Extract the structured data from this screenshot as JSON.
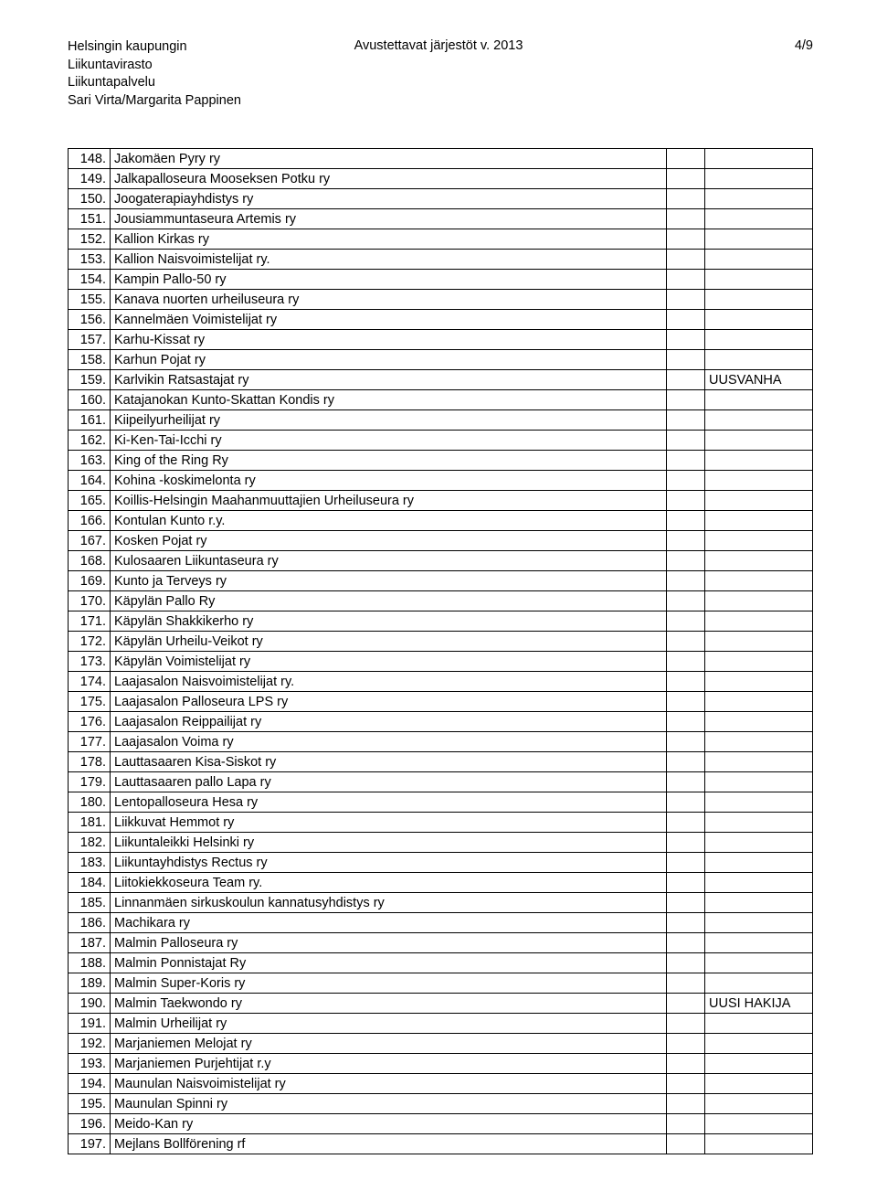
{
  "header": {
    "org_line1": "Helsingin kaupungin",
    "org_line2": "Liikuntavirasto",
    "org_line3": "Liikuntapalvelu",
    "org_line4": "Sari Virta/Margarita Pappinen",
    "title": "Avustettavat järjestöt v. 2013",
    "page_indicator": "4/9"
  },
  "notes": {
    "uusvanha": "UUSVANHA",
    "uusi_hakija": "UUSI HAKIJA"
  },
  "rows": [
    {
      "n": "148.",
      "name": "Jakomäen Pyry ry"
    },
    {
      "n": "149.",
      "name": "Jalkapalloseura Mooseksen Potku ry"
    },
    {
      "n": "150.",
      "name": "Joogaterapiayhdistys ry"
    },
    {
      "n": "151.",
      "name": "Jousiammuntaseura Artemis ry"
    },
    {
      "n": "152.",
      "name": "Kallion Kirkas ry"
    },
    {
      "n": "153.",
      "name": "Kallion Naisvoimistelijat ry."
    },
    {
      "n": "154.",
      "name": "Kampin Pallo-50 ry"
    },
    {
      "n": "155.",
      "name": "Kanava nuorten urheiluseura ry"
    },
    {
      "n": "156.",
      "name": "Kannelmäen Voimistelijat ry"
    },
    {
      "n": "157.",
      "name": "Karhu-Kissat ry"
    },
    {
      "n": "158.",
      "name": "Karhun Pojat ry"
    },
    {
      "n": "159.",
      "name": "Karlvikin Ratsastajat ry",
      "note_key": "uusvanha"
    },
    {
      "n": "160.",
      "name": "Katajanokan Kunto-Skattan Kondis ry"
    },
    {
      "n": "161.",
      "name": "Kiipeilyurheilijat ry"
    },
    {
      "n": "162.",
      "name": "Ki-Ken-Tai-Icchi ry"
    },
    {
      "n": "163.",
      "name": "King of the Ring Ry"
    },
    {
      "n": "164.",
      "name": "Kohina -koskimelonta ry"
    },
    {
      "n": "165.",
      "name": "Koillis-Helsingin Maahanmuuttajien Urheiluseura ry"
    },
    {
      "n": "166.",
      "name": "Kontulan Kunto r.y."
    },
    {
      "n": "167.",
      "name": "Kosken Pojat ry"
    },
    {
      "n": "168.",
      "name": "Kulosaaren Liikuntaseura ry"
    },
    {
      "n": "169.",
      "name": "Kunto ja Terveys ry"
    },
    {
      "n": "170.",
      "name": "Käpylän Pallo Ry"
    },
    {
      "n": "171.",
      "name": "Käpylän Shakkikerho ry"
    },
    {
      "n": "172.",
      "name": "Käpylän Urheilu-Veikot ry"
    },
    {
      "n": "173.",
      "name": "Käpylän Voimistelijat ry"
    },
    {
      "n": "174.",
      "name": "Laajasalon Naisvoimistelijat ry."
    },
    {
      "n": "175.",
      "name": "Laajasalon Palloseura LPS ry"
    },
    {
      "n": "176.",
      "name": "Laajasalon Reippailijat ry"
    },
    {
      "n": "177.",
      "name": "Laajasalon Voima ry"
    },
    {
      "n": "178.",
      "name": "Lauttasaaren Kisa-Siskot ry"
    },
    {
      "n": "179.",
      "name": "Lauttasaaren pallo Lapa ry"
    },
    {
      "n": "180.",
      "name": "Lentopalloseura Hesa ry"
    },
    {
      "n": "181.",
      "name": "Liikkuvat Hemmot ry"
    },
    {
      "n": "182.",
      "name": "Liikuntaleikki Helsinki ry"
    },
    {
      "n": "183.",
      "name": "Liikuntayhdistys Rectus ry"
    },
    {
      "n": "184.",
      "name": "Liitokiekkoseura Team ry."
    },
    {
      "n": "185.",
      "name": "Linnanmäen sirkuskoulun kannatusyhdistys ry"
    },
    {
      "n": "186.",
      "name": "Machikara ry"
    },
    {
      "n": "187.",
      "name": "Malmin Palloseura ry"
    },
    {
      "n": "188.",
      "name": "Malmin Ponnistajat Ry"
    },
    {
      "n": "189.",
      "name": "Malmin Super-Koris ry"
    },
    {
      "n": "190.",
      "name": "Malmin Taekwondo ry",
      "note_key": "uusi_hakija"
    },
    {
      "n": "191.",
      "name": "Malmin Urheilijat ry"
    },
    {
      "n": "192.",
      "name": "Marjaniemen Melojat ry"
    },
    {
      "n": "193.",
      "name": "Marjaniemen Purjehtijat r.y"
    },
    {
      "n": "194.",
      "name": "Maunulan Naisvoimistelijat ry"
    },
    {
      "n": "195.",
      "name": "Maunulan Spinni ry"
    },
    {
      "n": "196.",
      "name": "Meido-Kan ry"
    },
    {
      "n": "197.",
      "name": "Mejlans Bollförening rf"
    }
  ]
}
